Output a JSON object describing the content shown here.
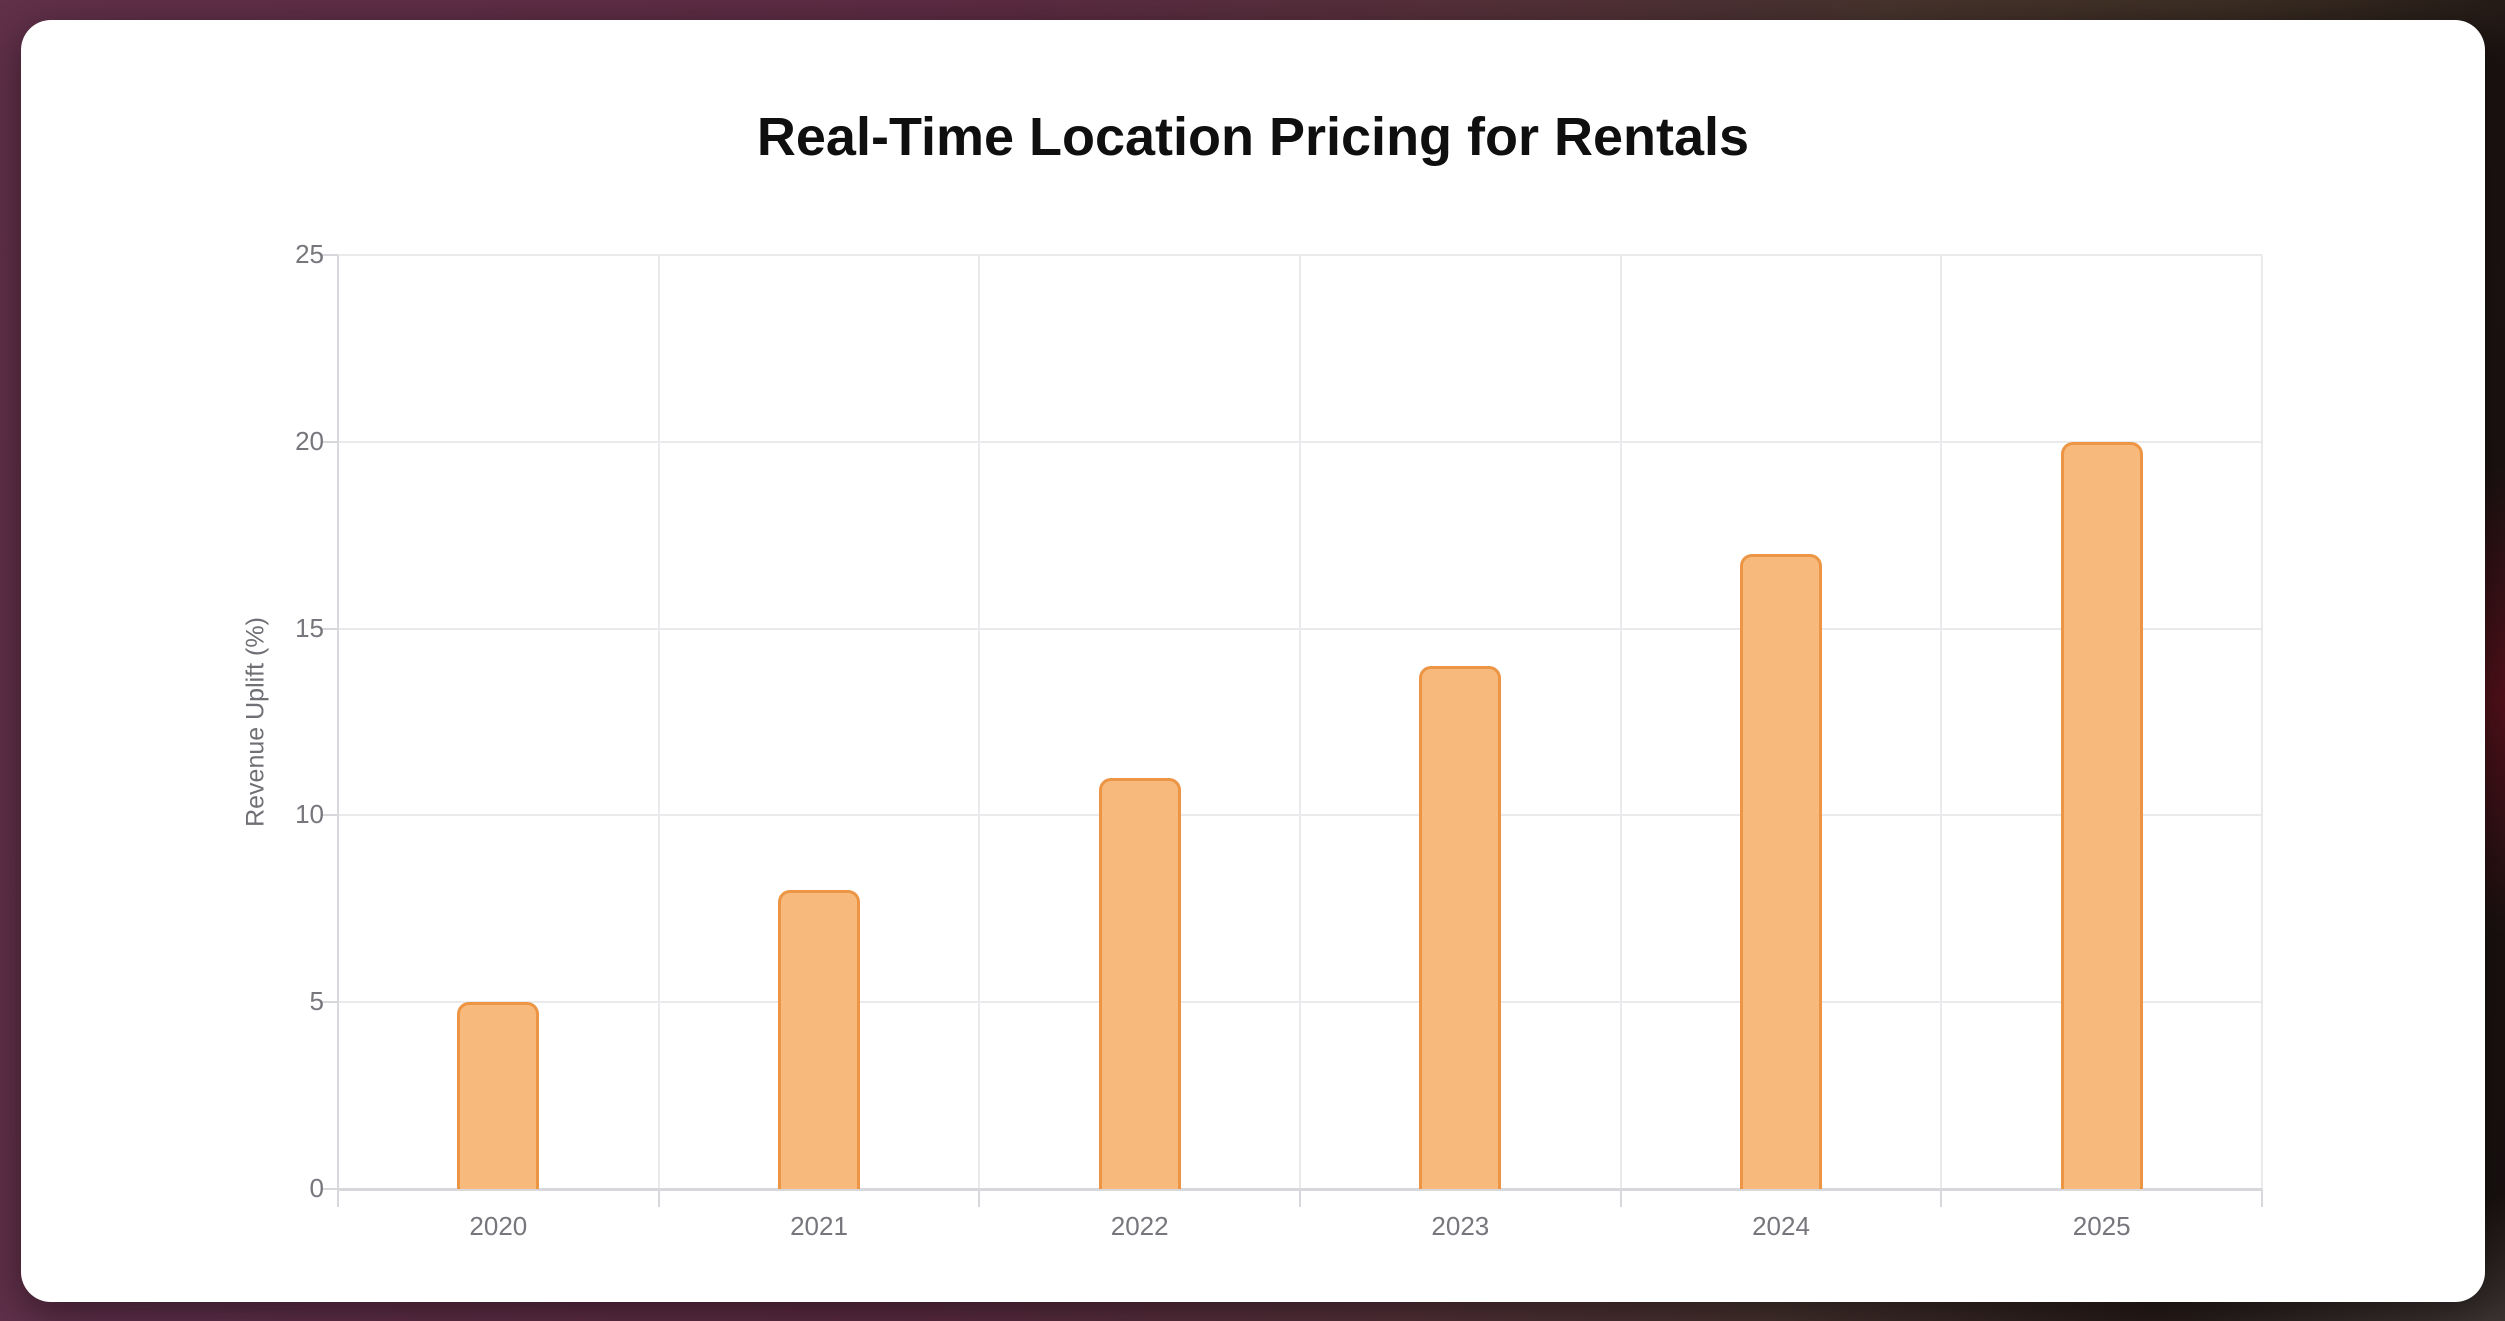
{
  "chart_data": {
    "type": "bar",
    "title": "Real-Time Location Pricing for Rentals",
    "xlabel": "",
    "ylabel": "Revenue Uplift (%)",
    "categories": [
      "2020",
      "2021",
      "2022",
      "2023",
      "2024",
      "2025"
    ],
    "values": [
      5,
      8,
      11,
      14,
      17,
      20
    ],
    "ylim": [
      0,
      25
    ],
    "yticks": [
      0,
      5,
      10,
      15,
      20,
      25
    ],
    "grid": "on",
    "legend": "none",
    "colors": {
      "bar_fill": "#F7B97C",
      "bar_border": "#EC9544",
      "grid_line": "#EAEAED",
      "axis_line": "#D8D8DC",
      "tick_label": "#76767C",
      "title_text": "#0F0F10",
      "card_background": "#FFFFFF"
    }
  }
}
